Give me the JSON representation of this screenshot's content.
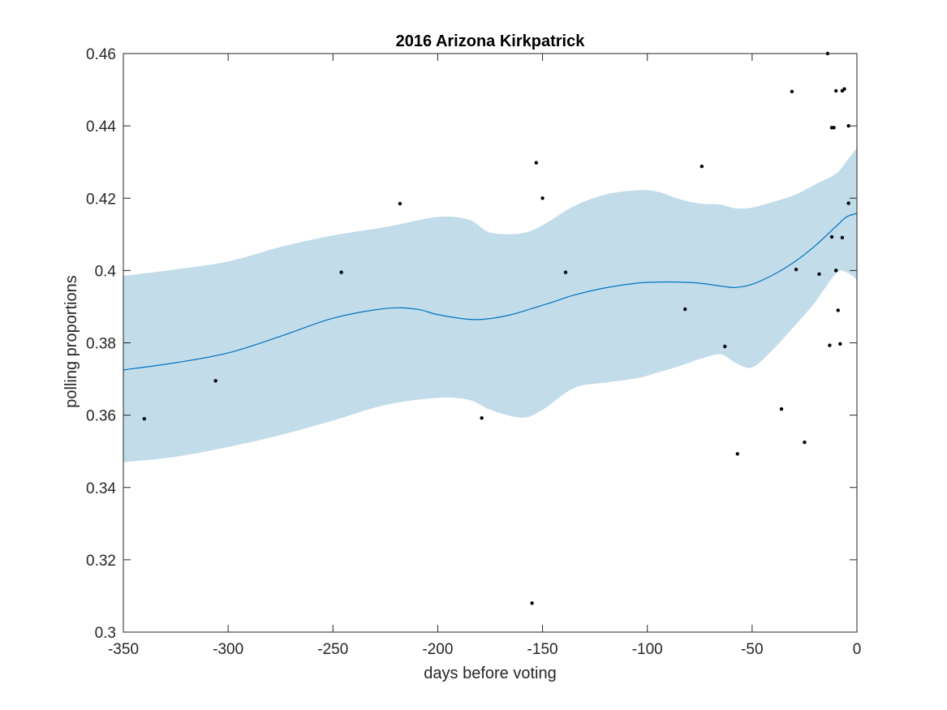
{
  "chart_data": {
    "type": "scatter",
    "title": "2016 Arizona Kirkpatrick",
    "xlabel": "days before voting",
    "ylabel": "polling proportions",
    "xlim": [
      -350,
      0
    ],
    "ylim": [
      0.3,
      0.46
    ],
    "xticks": [
      -350,
      -300,
      -250,
      -200,
      -150,
      -100,
      -50,
      0
    ],
    "xtick_labels": [
      "-350",
      "-300",
      "-250",
      "-200",
      "-150",
      "-100",
      "-50",
      "0"
    ],
    "yticks": [
      0.3,
      0.32,
      0.34,
      0.36,
      0.38,
      0.4,
      0.42,
      0.44,
      0.46
    ],
    "ytick_labels": [
      "0.3",
      "0.32",
      "0.34",
      "0.36",
      "0.38",
      "0.4",
      "0.42",
      "0.44",
      "0.46"
    ],
    "grid": false,
    "colors": {
      "trend": "#0072bd",
      "band": "#c2dcea",
      "points": "#000000",
      "axes": "#262626"
    },
    "series": [
      {
        "kind": "confidence-band",
        "x": [
          -350,
          -325,
          -300,
          -275,
          -250,
          -225,
          -200,
          -185,
          -175,
          -160,
          -150,
          -135,
          -120,
          -105,
          -95,
          -85,
          -75,
          -65,
          -58,
          -50,
          -40,
          -30,
          -20,
          -10,
          -5,
          0
        ],
        "upper": [
          0.3985,
          0.4003,
          0.4025,
          0.4065,
          0.4097,
          0.412,
          0.4148,
          0.414,
          0.4105,
          0.4103,
          0.4125,
          0.4178,
          0.421,
          0.4222,
          0.4218,
          0.4198,
          0.4185,
          0.4182,
          0.4172,
          0.4174,
          0.419,
          0.4208,
          0.4238,
          0.4268,
          0.4302,
          0.434
        ],
        "lower": [
          0.347,
          0.3485,
          0.3512,
          0.3545,
          0.3585,
          0.3628,
          0.3648,
          0.3642,
          0.3615,
          0.3593,
          0.3615,
          0.3675,
          0.369,
          0.3702,
          0.3718,
          0.3735,
          0.3755,
          0.3768,
          0.3745,
          0.3732,
          0.3782,
          0.3845,
          0.3912,
          0.3992,
          0.3995,
          0.3975
        ]
      },
      {
        "kind": "trend-line",
        "x": [
          -350,
          -325,
          -300,
          -275,
          -250,
          -225,
          -210,
          -200,
          -185,
          -175,
          -165,
          -155,
          -145,
          -135,
          -120,
          -105,
          -95,
          -85,
          -75,
          -65,
          -58,
          -50,
          -40,
          -30,
          -20,
          -10,
          -5,
          0
        ],
        "y": [
          0.3725,
          0.3745,
          0.3772,
          0.3818,
          0.3868,
          0.3895,
          0.3893,
          0.3878,
          0.3865,
          0.3867,
          0.3878,
          0.3895,
          0.3913,
          0.3932,
          0.3952,
          0.3965,
          0.3968,
          0.3968,
          0.3965,
          0.3957,
          0.3953,
          0.3962,
          0.3988,
          0.4023,
          0.4068,
          0.4122,
          0.4148,
          0.4158
        ]
      },
      {
        "kind": "polls",
        "x": [
          -340,
          -306,
          -246,
          -218,
          -179,
          -155,
          -153,
          -150,
          -139,
          -82,
          -74,
          -63,
          -57,
          -36,
          -31,
          -29,
          -25,
          -18,
          -14,
          -13,
          -12,
          -12,
          -11,
          -10,
          -10,
          -10,
          -9,
          -8,
          -7,
          -7,
          -6,
          -4,
          -4
        ],
        "y": [
          0.359,
          0.3695,
          0.3995,
          0.4185,
          0.3592,
          0.308,
          0.4298,
          0.42,
          0.3995,
          0.3893,
          0.4288,
          0.379,
          0.3493,
          0.3617,
          0.4495,
          0.4003,
          0.3525,
          0.399,
          0.46,
          0.3793,
          0.4395,
          0.4093,
          0.4395,
          0.4497,
          0.4,
          0.4,
          0.389,
          0.3797,
          0.4497,
          0.4091,
          0.4502,
          0.44,
          0.4186
        ]
      }
    ]
  }
}
